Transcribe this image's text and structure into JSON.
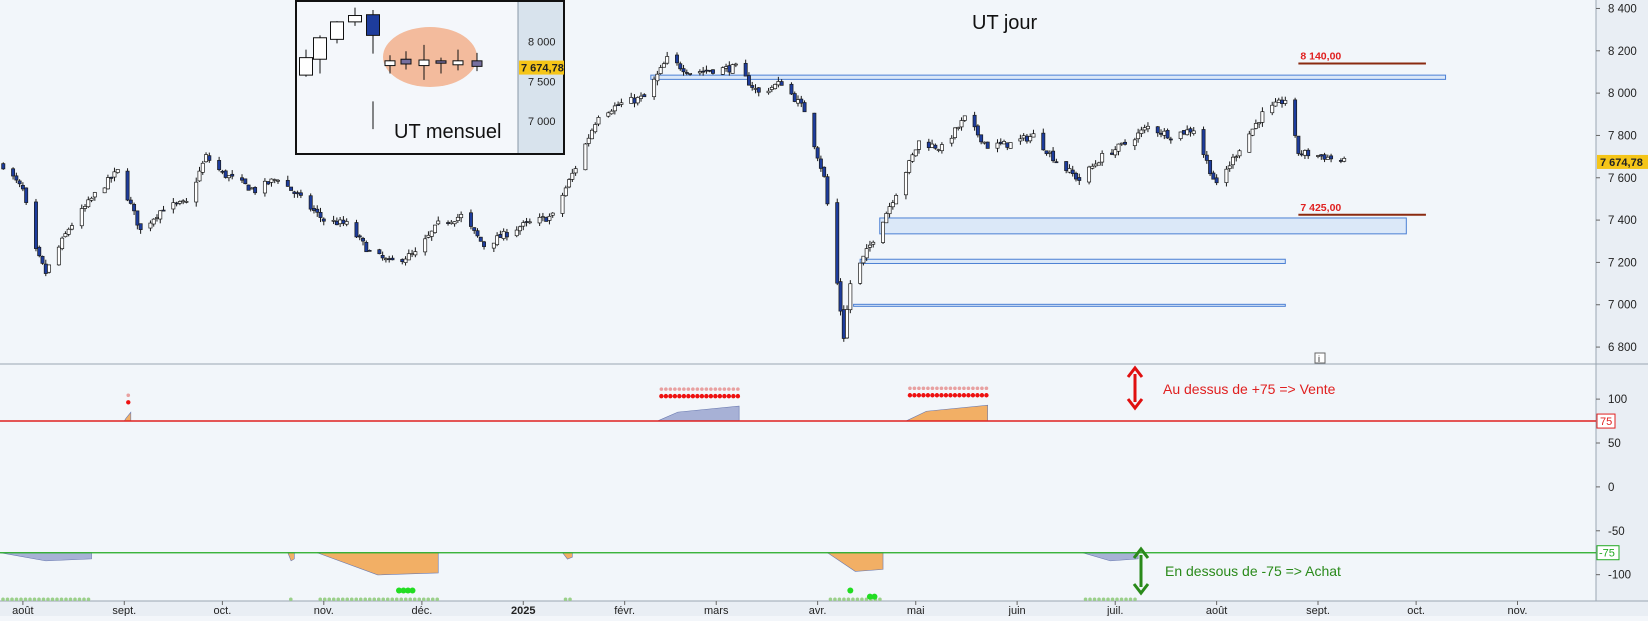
{
  "chart_data": {
    "type": "candlestick",
    "title": "UT jour",
    "y_axis_main": {
      "ticks": [
        "8 400",
        "8 200",
        "8 000",
        "7 800",
        "7 600",
        "7 400",
        "7 200",
        "7 000",
        "6 800"
      ],
      "tick_values": [
        8400,
        8200,
        8000,
        7800,
        7600,
        7400,
        7200,
        7000,
        6800
      ],
      "range": [
        6720,
        8440
      ]
    },
    "last_price": {
      "label": "7 674,78",
      "value": 7674.78
    },
    "x_axis": {
      "labels": [
        "août",
        "sept.",
        "oct.",
        "nov.",
        "déc.",
        "2025",
        "févr.",
        "mars",
        "avr.",
        "mai",
        "juin",
        "juil.",
        "août",
        "sept.",
        "oct.",
        "nov."
      ],
      "range": [
        "2024-07-25",
        "2025-11-25"
      ]
    },
    "levels": [
      {
        "label": "8 140,00",
        "value": 8140,
        "color": "#8b2a10",
        "label_color": "#e02020"
      },
      {
        "label": "7 425,00",
        "value": 7425,
        "color": "#8b2a10",
        "label_color": "#e02020"
      }
    ],
    "zones": [
      {
        "from": "2025-02-09",
        "to": "2025-10-10",
        "low": 8065,
        "high": 8085
      },
      {
        "from": "2025-04-20",
        "to": "2025-09-28",
        "low": 7335,
        "high": 7410
      },
      {
        "from": "2025-04-14",
        "to": "2025-08-22",
        "low": 7195,
        "high": 7215
      },
      {
        "from": "2025-04-12",
        "to": "2025-08-22",
        "low": 7000,
        "high": 7002
      }
    ],
    "price_series": [
      {
        "date": "2024-07-26",
        "close": 7660
      },
      {
        "date": "2024-08-01",
        "close": 7540
      },
      {
        "date": "2024-08-05",
        "close": 7250
      },
      {
        "date": "2024-08-08",
        "close": 7150
      },
      {
        "date": "2024-08-15",
        "close": 7360
      },
      {
        "date": "2024-08-23",
        "close": 7520
      },
      {
        "date": "2024-08-30",
        "close": 7630
      },
      {
        "date": "2024-09-06",
        "close": 7350
      },
      {
        "date": "2024-09-13",
        "close": 7460
      },
      {
        "date": "2024-09-20",
        "close": 7480
      },
      {
        "date": "2024-09-26",
        "close": 7700
      },
      {
        "date": "2024-10-01",
        "close": 7620
      },
      {
        "date": "2024-10-11",
        "close": 7540
      },
      {
        "date": "2024-10-18",
        "close": 7600
      },
      {
        "date": "2024-10-25",
        "close": 7500
      },
      {
        "date": "2024-11-01",
        "close": 7400
      },
      {
        "date": "2024-11-08",
        "close": 7380
      },
      {
        "date": "2024-11-15",
        "close": 7250
      },
      {
        "date": "2024-11-21",
        "close": 7200
      },
      {
        "date": "2024-11-29",
        "close": 7240
      },
      {
        "date": "2024-12-06",
        "close": 7380
      },
      {
        "date": "2024-12-13",
        "close": 7420
      },
      {
        "date": "2024-12-20",
        "close": 7280
      },
      {
        "date": "2024-12-31",
        "close": 7370
      },
      {
        "date": "2025-01-10",
        "close": 7420
      },
      {
        "date": "2025-01-17",
        "close": 7650
      },
      {
        "date": "2025-01-24",
        "close": 7900
      },
      {
        "date": "2025-01-31",
        "close": 7950
      },
      {
        "date": "2025-02-07",
        "close": 7980
      },
      {
        "date": "2025-02-14",
        "close": 8160
      },
      {
        "date": "2025-02-21",
        "close": 8100
      },
      {
        "date": "2025-02-28",
        "close": 8110
      },
      {
        "date": "2025-03-07",
        "close": 8120
      },
      {
        "date": "2025-03-14",
        "close": 8000
      },
      {
        "date": "2025-03-21",
        "close": 8050
      },
      {
        "date": "2025-03-28",
        "close": 7920
      },
      {
        "date": "2025-04-03",
        "close": 7600
      },
      {
        "date": "2025-04-07",
        "close": 7100
      },
      {
        "date": "2025-04-09",
        "close": 6850
      },
      {
        "date": "2025-04-11",
        "close": 7100
      },
      {
        "date": "2025-04-17",
        "close": 7280
      },
      {
        "date": "2025-04-25",
        "close": 7530
      },
      {
        "date": "2025-05-02",
        "close": 7770
      },
      {
        "date": "2025-05-09",
        "close": 7740
      },
      {
        "date": "2025-05-16",
        "close": 7880
      },
      {
        "date": "2025-05-23",
        "close": 7750
      },
      {
        "date": "2025-05-30",
        "close": 7760
      },
      {
        "date": "2025-06-06",
        "close": 7800
      },
      {
        "date": "2025-06-13",
        "close": 7680
      },
      {
        "date": "2025-06-20",
        "close": 7590
      },
      {
        "date": "2025-06-27",
        "close": 7700
      },
      {
        "date": "2025-07-04",
        "close": 7760
      },
      {
        "date": "2025-07-11",
        "close": 7840
      },
      {
        "date": "2025-07-18",
        "close": 7800
      },
      {
        "date": "2025-07-25",
        "close": 7830
      },
      {
        "date": "2025-08-01",
        "close": 7560
      },
      {
        "date": "2025-08-08",
        "close": 7740
      },
      {
        "date": "2025-08-15",
        "close": 7900
      },
      {
        "date": "2025-08-22",
        "close": 7970
      },
      {
        "date": "2025-08-26",
        "close": 7720
      },
      {
        "date": "2025-09-03",
        "close": 7700
      },
      {
        "date": "2025-09-09",
        "close": 7674.78
      }
    ],
    "oscillator": {
      "ticks": [
        "100",
        "50",
        "0",
        "-50",
        "-100"
      ],
      "tick_values": [
        100,
        50,
        0,
        -50,
        -100
      ],
      "range": [
        -130,
        140
      ],
      "upper": {
        "label": "75",
        "value": 75,
        "color": "#e02020"
      },
      "lower": {
        "label": "-75",
        "value": -75,
        "color": "#22aa22"
      },
      "upper_bursts": [
        {
          "from": "2024-09-01",
          "to": "2024-09-03",
          "max": 85,
          "color": "orange"
        },
        {
          "from": "2025-02-11",
          "to": "2025-03-08",
          "max": 92,
          "color": "blue"
        },
        {
          "from": "2025-04-28",
          "to": "2025-05-23",
          "max": 93,
          "color": "orange"
        }
      ],
      "lower_bursts": [
        {
          "from": "2024-07-25",
          "to": "2024-08-22",
          "min": -82,
          "color": "blue"
        },
        {
          "from": "2024-10-21",
          "to": "2024-10-23",
          "min": -82,
          "color": "orange"
        },
        {
          "from": "2024-10-30",
          "to": "2024-12-06",
          "min": -98,
          "color": "orange"
        },
        {
          "from": "2025-01-13",
          "to": "2025-01-16",
          "min": -80,
          "color": "orange"
        },
        {
          "from": "2025-04-04",
          "to": "2025-04-21",
          "min": -94,
          "color": "orange"
        },
        {
          "from": "2025-06-21",
          "to": "2025-07-08",
          "min": -82,
          "color": "blue"
        }
      ]
    }
  },
  "annotations": {
    "title": "UT jour",
    "inset_label": "UT mensuel",
    "inset_ticks": [
      "8 000",
      "7 674,78",
      "7 500",
      "7 000"
    ],
    "sell_note": "Au dessus de +75 => Vente",
    "buy_note": "En dessous de -75 => Achat",
    "info_icon": "i",
    "colors": {
      "sell": "#e02020",
      "buy": "#2a8a1a",
      "zone_fill": "#dbe8f8",
      "zone_stroke": "#4b7fd4",
      "bull": "#ffffff",
      "bear": "#1d3c9c",
      "price_box": "#f5c518"
    }
  }
}
